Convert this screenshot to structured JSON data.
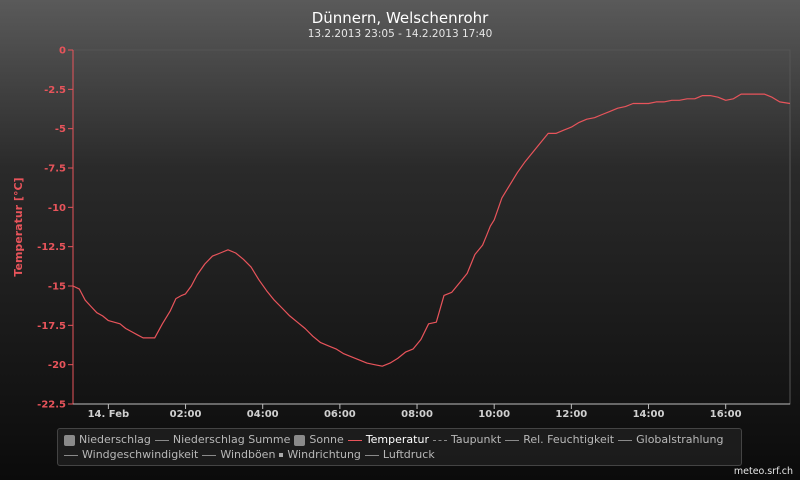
{
  "chart_data": {
    "type": "line",
    "title": "Dünnern, Welschenrohr",
    "subtitle": "13.2.2013 23:05 - 14.2.2013 17:40",
    "ylabel": "Temperatur [°C]",
    "ylim": [
      -22.5,
      0
    ],
    "yticks": [
      0,
      -2.5,
      -5,
      -7.5,
      -10,
      -12.5,
      -15,
      -17.5,
      -20,
      -22.5
    ],
    "ytick_labels": [
      "0",
      "-2.5",
      "-5",
      "-7.5",
      "-10",
      "-12.5",
      "-15",
      "-17.5",
      "-20",
      "-22.5"
    ],
    "xlim_hours": [
      -0.917,
      17.667
    ],
    "xticks": [
      {
        "h": 0,
        "label": "14. Feb"
      },
      {
        "h": 2,
        "label": "02:00"
      },
      {
        "h": 4,
        "label": "04:00"
      },
      {
        "h": 6,
        "label": "06:00"
      },
      {
        "h": 8,
        "label": "08:00"
      },
      {
        "h": 10,
        "label": "10:00"
      },
      {
        "h": 12,
        "label": "12:00"
      },
      {
        "h": 14,
        "label": "14:00"
      },
      {
        "h": 16,
        "label": "16:00"
      }
    ],
    "grid": false,
    "series": [
      {
        "name": "Temperatur",
        "color": "#e8545b",
        "x": [
          -0.917,
          -0.75,
          -0.6,
          -0.45,
          -0.3,
          -0.15,
          0,
          0.15,
          0.3,
          0.45,
          0.6,
          0.75,
          0.9,
          1.0,
          1.2,
          1.4,
          1.6,
          1.75,
          1.9,
          2.0,
          2.15,
          2.3,
          2.5,
          2.7,
          2.9,
          3.1,
          3.3,
          3.5,
          3.7,
          3.9,
          4.1,
          4.3,
          4.5,
          4.7,
          4.9,
          5.1,
          5.3,
          5.5,
          5.7,
          5.9,
          6.1,
          6.3,
          6.5,
          6.7,
          6.9,
          7.1,
          7.3,
          7.5,
          7.7,
          7.9,
          8.1,
          8.3,
          8.5,
          8.7,
          8.9,
          9.1,
          9.3,
          9.5,
          9.7,
          9.8,
          9.9,
          10.0,
          10.2,
          10.4,
          10.6,
          10.8,
          11.0,
          11.2,
          11.4,
          11.6,
          11.8,
          12.0,
          12.2,
          12.4,
          12.6,
          12.8,
          13.0,
          13.2,
          13.4,
          13.6,
          13.8,
          14.0,
          14.2,
          14.4,
          14.6,
          14.8,
          15.0,
          15.2,
          15.4,
          15.6,
          15.8,
          16.0,
          16.2,
          16.4,
          16.6,
          16.8,
          17.0,
          17.2,
          17.4,
          17.667
        ],
        "y": [
          -15.0,
          -15.2,
          -15.9,
          -16.3,
          -16.7,
          -16.9,
          -17.2,
          -17.3,
          -17.4,
          -17.7,
          -17.9,
          -18.1,
          -18.3,
          -18.3,
          -18.3,
          -17.4,
          -16.6,
          -15.8,
          -15.6,
          -15.5,
          -15.0,
          -14.3,
          -13.6,
          -13.1,
          -12.9,
          -12.7,
          -12.9,
          -13.3,
          -13.8,
          -14.6,
          -15.3,
          -15.9,
          -16.4,
          -16.9,
          -17.3,
          -17.7,
          -18.2,
          -18.6,
          -18.8,
          -19.0,
          -19.3,
          -19.5,
          -19.7,
          -19.9,
          -20.0,
          -20.1,
          -19.9,
          -19.6,
          -19.2,
          -19.0,
          -18.4,
          -17.4,
          -17.3,
          -15.6,
          -15.4,
          -14.8,
          -14.2,
          -13.0,
          -12.4,
          -11.8,
          -11.2,
          -10.8,
          -9.4,
          -8.6,
          -7.8,
          -7.1,
          -6.5,
          -5.9,
          -5.3,
          -5.3,
          -5.1,
          -4.9,
          -4.6,
          -4.4,
          -4.3,
          -4.1,
          -3.9,
          -3.7,
          -3.6,
          -3.4,
          -3.4,
          -3.4,
          -3.3,
          -3.3,
          -3.2,
          -3.2,
          -3.1,
          -3.1,
          -2.9,
          -2.9,
          -3.0,
          -3.2,
          -3.1,
          -2.8,
          -2.8,
          -2.8,
          -2.8,
          -3.0,
          -3.3,
          -3.4
        ]
      }
    ],
    "legend": [
      {
        "label": "Niederschlag",
        "symbol": "box",
        "active": false
      },
      {
        "label": "Niederschlag Summe",
        "symbol": "line",
        "active": false
      },
      {
        "label": "Sonne",
        "symbol": "box",
        "active": false
      },
      {
        "label": "Temperatur",
        "symbol": "line-red",
        "active": true
      },
      {
        "label": "Taupunkt",
        "symbol": "dash",
        "active": false
      },
      {
        "label": "Rel. Feuchtigkeit",
        "symbol": "line",
        "active": false
      },
      {
        "label": "Globalstrahlung",
        "symbol": "line",
        "active": false
      },
      {
        "label": "Windgeschwindigkeit",
        "symbol": "line",
        "active": false
      },
      {
        "label": "Windböen",
        "symbol": "line",
        "active": false
      },
      {
        "label": "Windrichtung",
        "symbol": "dot",
        "active": false
      },
      {
        "label": "Luftdruck",
        "symbol": "line",
        "active": false
      }
    ]
  },
  "credit": "meteo.srf.ch"
}
